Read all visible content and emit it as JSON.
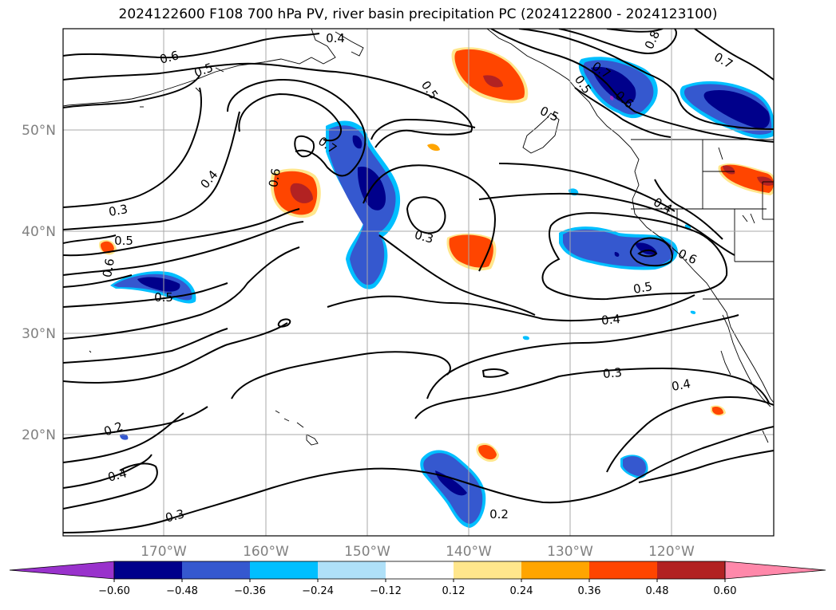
{
  "title": "2024122600 F108 700 hPa PV, river basin precipitation PC (2024122800 - 2024123100)",
  "lat_labels": [
    "50°N",
    "40°N",
    "30°N",
    "20°N"
  ],
  "lon_labels": [
    "170°W",
    "160°W",
    "150°W",
    "140°W",
    "130°W",
    "120°W"
  ],
  "contour_labels": [
    {
      "name": "pv-label-0.4-top",
      "text": "0.4"
    },
    {
      "name": "pv-label-0.6-nw",
      "text": "0.6"
    },
    {
      "name": "pv-label-0.5-nw",
      "text": "0.5"
    },
    {
      "name": "pv-label-0.5-gulf",
      "text": "0.5"
    },
    {
      "name": "pv-label-0.5-coast",
      "text": "0.5"
    },
    {
      "name": "pv-label-0.8",
      "text": "0.8"
    },
    {
      "name": "pv-label-0.7-ne",
      "text": "0.7"
    },
    {
      "name": "pv-label-0.7-bc",
      "text": "0.7"
    },
    {
      "name": "pv-label-0.6-bc",
      "text": "0.6"
    },
    {
      "name": "pv-label-0.5-bc",
      "text": "0.5"
    },
    {
      "name": "pv-label-0.4-west",
      "text": "0.4"
    },
    {
      "name": "pv-label-0.6-west",
      "text": "0.6"
    },
    {
      "name": "pv-label-0.7-west",
      "text": "0.7"
    },
    {
      "name": "pv-label-0.3-west",
      "text": "0.3"
    },
    {
      "name": "pv-label-0.5-far-west",
      "text": "0.5"
    },
    {
      "name": "pv-label-0.6-far-west",
      "text": "0.6"
    },
    {
      "name": "pv-label-0.5-hawaii-n",
      "text": "0.5"
    },
    {
      "name": "pv-label-0.3-mid",
      "text": "0.3"
    },
    {
      "name": "pv-label-0.4-ca",
      "text": "0.4"
    },
    {
      "name": "pv-label-0.6-ca",
      "text": "0.6"
    },
    {
      "name": "pv-label-0.5-ca",
      "text": "0.5"
    },
    {
      "name": "pv-label-0.4-offshore",
      "text": "0.4"
    },
    {
      "name": "pv-label-0.3-south",
      "text": "0.3"
    },
    {
      "name": "pv-label-0.4-mexico",
      "text": "0.4"
    },
    {
      "name": "pv-label-0.2-sw",
      "text": "0.2"
    },
    {
      "name": "pv-label-0.4-sw",
      "text": "0.4"
    },
    {
      "name": "pv-label-0.3-bottom",
      "text": "0.3"
    },
    {
      "name": "pv-label-0.2-bottom",
      "text": "0.2"
    }
  ],
  "colorbar": {
    "colors": [
      "#9932cc",
      "#00008b",
      "#3558cf",
      "#00bfff",
      "#afe0f8",
      "#ffffff",
      "#ffe68c",
      "#ffa500",
      "#ff4500",
      "#b22222",
      "#ff88aa"
    ],
    "ticks": [
      "−0.60",
      "−0.48",
      "−0.36",
      "−0.24",
      "−0.12",
      "0.12",
      "0.24",
      "0.36",
      "0.48",
      "0.60"
    ]
  }
}
